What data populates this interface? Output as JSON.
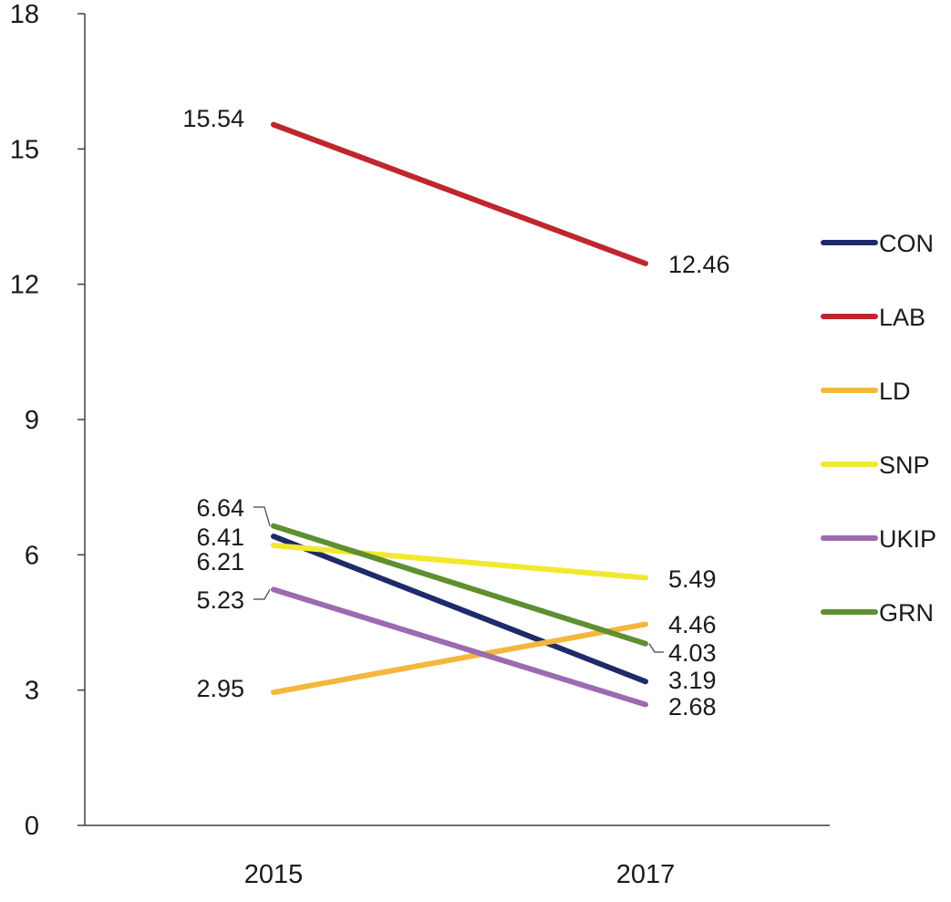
{
  "chart_data": {
    "type": "line",
    "title": "",
    "xlabel": "",
    "ylabel": "",
    "categories": [
      "2015",
      "2017"
    ],
    "ylim": [
      0,
      18
    ],
    "yticks": [
      "0",
      "3",
      "6",
      "9",
      "12",
      "15",
      "18"
    ],
    "grid": false,
    "legend_position": "right",
    "series": [
      {
        "name": "CON",
        "color": "#1f2a6b",
        "values": [
          6.41,
          3.19
        ],
        "labels": [
          "6.41",
          "3.19"
        ]
      },
      {
        "name": "LAB",
        "color": "#c0262d",
        "values": [
          15.54,
          12.46
        ],
        "labels": [
          "15.54",
          "12.46"
        ]
      },
      {
        "name": "LD",
        "color": "#f4b73e",
        "values": [
          2.95,
          4.46
        ],
        "labels": [
          "2.95",
          "4.46"
        ]
      },
      {
        "name": "SNP",
        "color": "#f2e82f",
        "values": [
          6.21,
          5.49
        ],
        "labels": [
          "6.21",
          "5.49"
        ]
      },
      {
        "name": "UKIP",
        "color": "#9b6bb0",
        "values": [
          5.23,
          2.68
        ],
        "labels": [
          "5.23",
          "2.68"
        ]
      },
      {
        "name": "GRN",
        "color": "#5e8f30",
        "values": [
          6.64,
          4.03
        ],
        "labels": [
          "6.64",
          "4.03"
        ]
      }
    ]
  }
}
